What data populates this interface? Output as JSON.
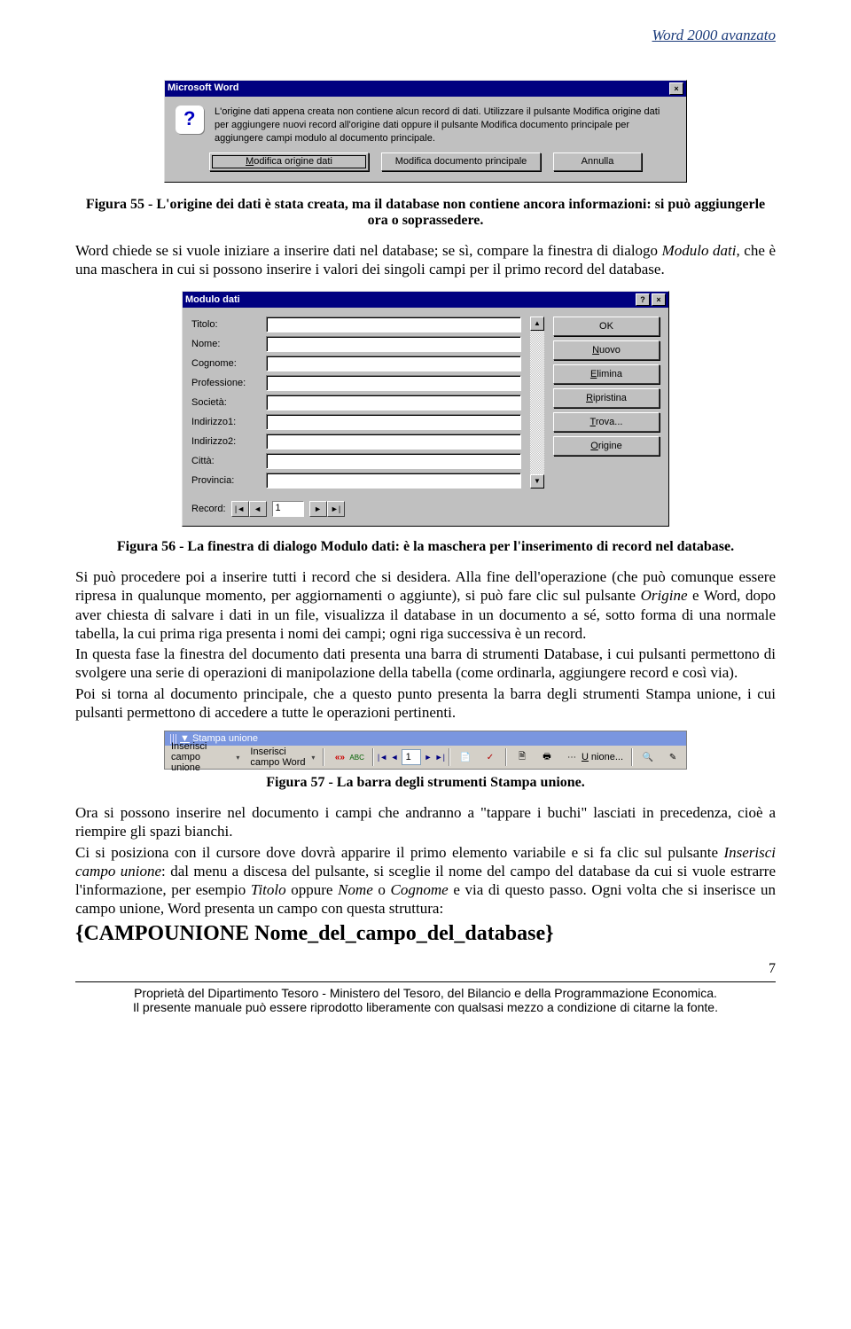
{
  "header": {
    "doc_title": "Word 2000 avanzato"
  },
  "dialog1": {
    "title": "Microsoft Word",
    "message": "L'origine dati appena creata non contiene alcun record di dati. Utilizzare il pulsante Modifica origine dati per aggiungere nuovi record all'origine dati oppure il pulsante Modifica documento principale per aggiungere campi modulo al documento principale.",
    "btn_modify_data": "odifica origine dati",
    "btn_modify_data_accel": "M",
    "btn_modify_doc": "Modifica documento principale",
    "btn_cancel": "Annulla"
  },
  "caption55": "Figura 55 - L'origine dei dati è stata creata, ma il database non contiene ancora informazioni: si può aggiungerle ora o soprassedere.",
  "para1": "Word chiede se si vuole iniziare a inserire dati nel database; se sì, compare la finestra di dialogo Modulo dati, che è una maschera in cui si possono inserire i valori dei singoli campi per il primo record del database.",
  "dialog2": {
    "title": "Modulo dati",
    "fields": [
      {
        "label": "Titolo:",
        "value": ""
      },
      {
        "label": "Nome:",
        "value": ""
      },
      {
        "label": "Cognome:",
        "value": ""
      },
      {
        "label": "Professione:",
        "value": ""
      },
      {
        "label": "Società:",
        "value": ""
      },
      {
        "label": "Indirizzo1:",
        "value": ""
      },
      {
        "label": "Indirizzo2:",
        "value": ""
      },
      {
        "label": "Città:",
        "value": ""
      },
      {
        "label": "Provincia:",
        "value": ""
      }
    ],
    "buttons": {
      "ok": "OK",
      "nuovo": "uovo",
      "nuovo_accel": "N",
      "elimina": "limina",
      "elimina_accel": "E",
      "ripristina": "ipristina",
      "ripristina_accel": "R",
      "trova": "rova...",
      "trova_accel": "T",
      "origine": "rigine",
      "origine_accel": "O"
    },
    "record_label": "Record:",
    "record_num": "1"
  },
  "caption56": "Figura 56 - La finestra di dialogo Modulo dati: è la maschera per l'inserimento di record nel database.",
  "para2": "Si può procedere poi a inserire tutti i record che si desidera. Alla fine dell'operazione (che può comunque essere ripresa in qualunque momento, per aggiornamenti o aggiunte), si può fare clic sul pulsante Origine e Word, dopo aver chiesta di salvare i dati in un file, visualizza il database in un documento a sé, sotto forma di una normale tabella, la cui prima riga presenta i nomi dei campi; ogni riga successiva è un record.",
  "para3": "In questa fase la finestra del documento dati presenta una barra di strumenti Database, i cui pulsanti permettono di svolgere una serie di operazioni di manipolazione della tabella (come ordinarla, aggiungere record e così via).",
  "para4": "Poi si torna al documento principale, che a questo punto presenta la barra degli strumenti Stampa unione, i cui pulsanti permettono di accedere a tutte le operazioni pertinenti.",
  "toolbar": {
    "title": "Stampa unione",
    "insert_merge": "Inserisci campo unione",
    "insert_word": "Inserisci campo Word",
    "record_num": "1",
    "unione": "nione...",
    "unione_accel": "U"
  },
  "caption57": "Figura 57 - La barra degli strumenti Stampa unione.",
  "para5": "Ora si possono inserire nel documento i campi che andranno a \"tappare i buchi\" lasciati in precedenza, cioè a riempire gli spazi bianchi.",
  "para6": "Ci si posiziona con il cursore dove dovrà apparire il primo elemento variabile e si fa clic sul pulsante Inserisci campo unione: dal menu a discesa del pulsante, si sceglie il nome del campo del database da cui si vuole estrarre l'informazione, per esempio Titolo oppure Nome o Cognome e via di questo passo. Ogni volta che si inserisce un campo unione, Word presenta un campo con questa struttura:",
  "merge_field": "{CAMPOUNIONE Nome_del_campo_del_database}",
  "footer": {
    "line1": "Proprietà del Dipartimento Tesoro - Ministero del Tesoro, del Bilancio e della Programmazione Economica.",
    "line2": "Il presente manuale può essere riprodotto liberamente con qualsasi mezzo a condizione di citarne la fonte.",
    "page": "7"
  }
}
